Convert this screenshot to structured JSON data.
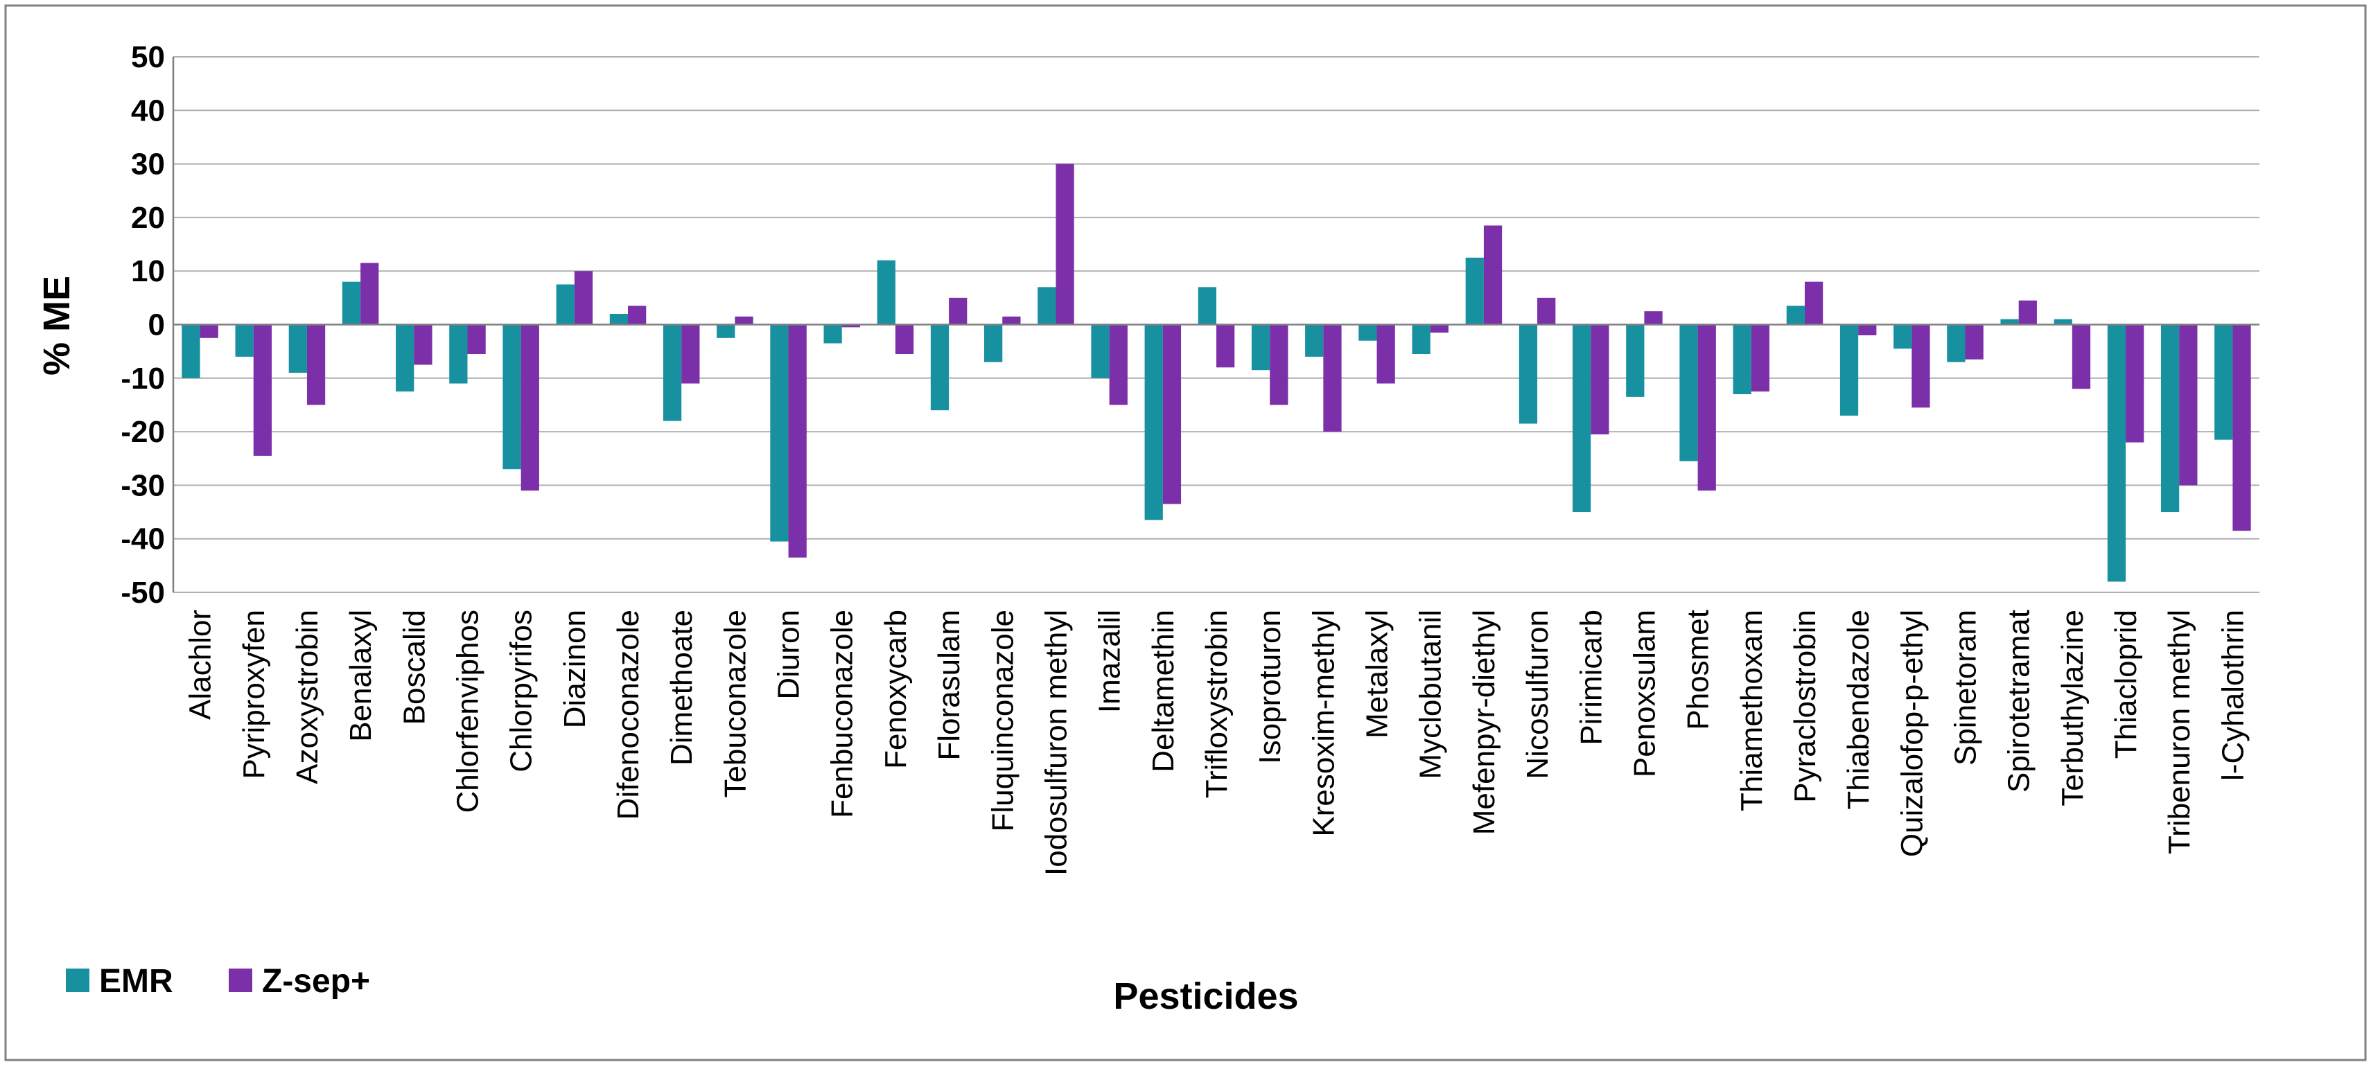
{
  "chart_data": {
    "type": "bar",
    "title": "",
    "xlabel": "Pesticides",
    "ylabel": "% ME",
    "ylim": [
      -50,
      50
    ],
    "yticks": [
      50,
      40,
      30,
      20,
      10,
      0,
      -10,
      -20,
      -30,
      -40,
      -50
    ],
    "grid": true,
    "legend_position": "bottom-left",
    "categories": [
      "Alachlor",
      "Pyriproxyfen",
      "Azoxystrobin",
      "Benalaxyl",
      "Boscalid",
      "Chlorfenviphos",
      "Chlorpyrifos",
      "Diazinon",
      "Difenoconazole",
      "Dimethoate",
      "Tebuconazole",
      "Diuron",
      "Fenbuconazole",
      "Fenoxycarb",
      "Florasulam",
      "Fluquinconazole",
      "Iodosulfuron methyl",
      "Imazalil",
      "Deltamethin",
      "Trifloxystrobin",
      "Isoproturon",
      "Kresoxim-methyl",
      "Metalaxyl",
      "Myclobutanil",
      "Mefenpyr-diethyl",
      "Nicosulfuron",
      "Pirimicarb",
      "Penoxsulam",
      "Phosmet",
      "Thiamethoxam",
      "Pyraclostrobin",
      "Thiabendazole",
      "Quizalofop-p-ethyl",
      "Spinetoram",
      "Spirotetramat",
      "Terbuthylazine",
      "Thiacloprid",
      "Tribenuron methyl",
      "l-Cyhalothrin"
    ],
    "series": [
      {
        "name": "EMR",
        "color": "#17909f",
        "values": [
          -10,
          -6,
          -9,
          8,
          -12.5,
          -11,
          -27,
          7.5,
          2,
          -18,
          -2.5,
          -40.5,
          -3.5,
          12,
          -16,
          -7,
          7,
          -10,
          -36.5,
          7,
          -8.5,
          -6,
          -3,
          -5.5,
          12.5,
          -18.5,
          -35,
          -13.5,
          -25.5,
          -13,
          3.5,
          -17,
          -4.5,
          -7,
          1,
          1,
          -48,
          -35,
          -21.5
        ]
      },
      {
        "name": "Z-sep+",
        "color": "#7b2fa8",
        "values": [
          -2.5,
          -24.5,
          -15,
          11.5,
          -7.5,
          -5.5,
          -31,
          10,
          3.5,
          -11,
          1.5,
          -43.5,
          -0.5,
          -5.5,
          5,
          1.5,
          30,
          -15,
          -33.5,
          -8,
          -15,
          -20,
          -11,
          -1.5,
          18.5,
          5,
          -20.5,
          2.5,
          -31,
          -12.5,
          8,
          -2,
          -15.5,
          -6.5,
          4.5,
          -12,
          -22,
          -30,
          -38.5
        ]
      }
    ]
  }
}
